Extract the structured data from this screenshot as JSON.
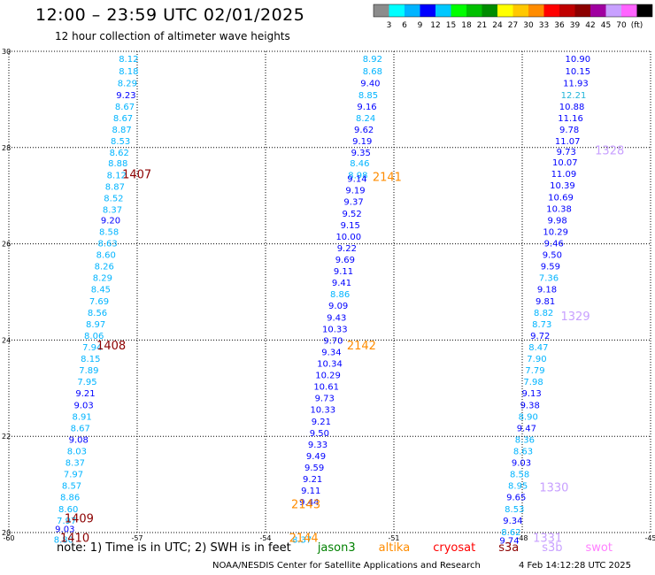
{
  "header": {
    "title": "12:00 – 23:59 UTC 02/01/2025",
    "subtitle": "12 hour collection of altimeter wave heights"
  },
  "colorbar": {
    "colors": [
      "#8c8c8c",
      "#00ffff",
      "#00b4ff",
      "#0000ff",
      "#00c8ff",
      "#00ff00",
      "#00c000",
      "#008c00",
      "#ffff00",
      "#ffc800",
      "#ff8c00",
      "#ff0000",
      "#c00000",
      "#8c0000",
      "#a000a0",
      "#c8a0ff",
      "#ff64ff",
      "#000000"
    ],
    "labels": [
      "3",
      "6",
      "9",
      "12",
      "15",
      "18",
      "21",
      "24",
      "27",
      "30",
      "33",
      "36",
      "39",
      "42",
      "45",
      "70",
      "(ft)"
    ]
  },
  "note": {
    "prefix": "note: 1) Time is in UTC; 2) SWH is in feet",
    "missions": [
      {
        "name": "jason3",
        "color": "#008000"
      },
      {
        "name": "altika",
        "color": "#ff8c00"
      },
      {
        "name": "cryosat",
        "color": "#ff0000"
      },
      {
        "name": "s3a",
        "color": "#8c0000"
      },
      {
        "name": "s3b",
        "color": "#c8a0ff"
      },
      {
        "name": "swot",
        "color": "#ff80ff"
      }
    ]
  },
  "footer": {
    "agency": "NOAA/NESDIS Center for Satellite Applications and Research",
    "generated": "4 Feb 14:12:28 UTC 2025"
  },
  "chart_data": {
    "type": "scatter",
    "title": "12:00 – 23:59 UTC 02/01/2025",
    "subtitle": "12 hour collection of altimeter wave heights",
    "xlim": [
      -60,
      -45
    ],
    "ylim": [
      20,
      30
    ],
    "x_ticks": [
      "-60",
      "-57",
      "-54",
      "-51",
      "-48",
      "-45"
    ],
    "y_ticks": [
      "20",
      "22",
      "24",
      "26",
      "28",
      "30"
    ],
    "grid": true,
    "series": [
      {
        "name": "track 1 (s3a)",
        "label_color": "#8c0000",
        "points": [
          {
            "lon": -57.2,
            "lat": 29.85,
            "swh": "8.12"
          },
          {
            "lon": -57.2,
            "lat": 29.6,
            "swh": "8.18"
          },
          {
            "lon": -57.23,
            "lat": 29.35,
            "swh": "8.29"
          },
          {
            "lon": -57.26,
            "lat": 29.1,
            "swh": "9.23"
          },
          {
            "lon": -57.29,
            "lat": 28.86,
            "swh": "8.67"
          },
          {
            "lon": -57.33,
            "lat": 28.62,
            "swh": "8.67"
          },
          {
            "lon": -57.36,
            "lat": 28.38,
            "swh": "8.87"
          },
          {
            "lon": -57.39,
            "lat": 28.14,
            "swh": "8.53"
          },
          {
            "lon": -57.42,
            "lat": 27.9,
            "swh": "8.62"
          },
          {
            "lon": -57.45,
            "lat": 27.68,
            "swh": "8.88"
          },
          {
            "lon": -57.48,
            "lat": 27.44,
            "swh": "8.12"
          },
          {
            "lon": -57.52,
            "lat": 27.2,
            "swh": "8.87"
          },
          {
            "lon": -57.55,
            "lat": 26.96,
            "swh": "8.52"
          },
          {
            "lon": -57.58,
            "lat": 26.72,
            "swh": "8.37"
          },
          {
            "lon": -57.62,
            "lat": 26.5,
            "swh": "9.20"
          },
          {
            "lon": -57.66,
            "lat": 26.26,
            "swh": "8.58"
          },
          {
            "lon": -57.69,
            "lat": 26.02,
            "swh": "8.63"
          },
          {
            "lon": -57.73,
            "lat": 25.78,
            "swh": "8.60"
          },
          {
            "lon": -57.77,
            "lat": 25.54,
            "swh": "8.26"
          },
          {
            "lon": -57.81,
            "lat": 25.3,
            "swh": "8.29"
          },
          {
            "lon": -57.85,
            "lat": 25.06,
            "swh": "8.45"
          },
          {
            "lon": -57.89,
            "lat": 24.82,
            "swh": "7.69"
          },
          {
            "lon": -57.93,
            "lat": 24.58,
            "swh": "8.56"
          },
          {
            "lon": -57.97,
            "lat": 24.34,
            "swh": "8.97"
          },
          {
            "lon": -58.01,
            "lat": 24.1,
            "swh": "8.06"
          },
          {
            "lon": -58.05,
            "lat": 23.86,
            "swh": "7.94"
          },
          {
            "lon": -58.09,
            "lat": 23.62,
            "swh": "8.15"
          },
          {
            "lon": -58.13,
            "lat": 23.38,
            "swh": "7.89"
          },
          {
            "lon": -58.17,
            "lat": 23.14,
            "swh": "7.95"
          },
          {
            "lon": -58.21,
            "lat": 22.9,
            "swh": "9.21"
          },
          {
            "lon": -58.25,
            "lat": 22.66,
            "swh": "9.03"
          },
          {
            "lon": -58.29,
            "lat": 22.42,
            "swh": "8.91"
          },
          {
            "lon": -58.33,
            "lat": 22.18,
            "swh": "8.67"
          },
          {
            "lon": -58.37,
            "lat": 21.94,
            "swh": "9.08"
          },
          {
            "lon": -58.41,
            "lat": 21.7,
            "swh": "8.03"
          },
          {
            "lon": -58.45,
            "lat": 21.46,
            "swh": "8.37"
          },
          {
            "lon": -58.49,
            "lat": 21.22,
            "swh": "7.97"
          },
          {
            "lon": -58.53,
            "lat": 20.98,
            "swh": "8.57"
          },
          {
            "lon": -58.57,
            "lat": 20.74,
            "swh": "8.86"
          },
          {
            "lon": -58.61,
            "lat": 20.5,
            "swh": "8.60"
          },
          {
            "lon": -58.65,
            "lat": 20.26,
            "swh": "7.97"
          },
          {
            "lon": -58.69,
            "lat": 20.08,
            "swh": "9.03"
          },
          {
            "lon": -58.72,
            "lat": 19.86,
            "swh": "8.80"
          }
        ]
      },
      {
        "name": "track 2 (altika)",
        "label_color": "#ff8c00",
        "points": [
          {
            "lon": -51.5,
            "lat": 29.85,
            "swh": "8.92"
          },
          {
            "lon": -51.5,
            "lat": 29.6,
            "swh": "8.68"
          },
          {
            "lon": -51.55,
            "lat": 29.35,
            "swh": "9.40"
          },
          {
            "lon": -51.6,
            "lat": 29.1,
            "swh": "8.85"
          },
          {
            "lon": -51.63,
            "lat": 28.86,
            "swh": "9.16"
          },
          {
            "lon": -51.66,
            "lat": 28.62,
            "swh": "8.24"
          },
          {
            "lon": -51.7,
            "lat": 28.38,
            "swh": "9.62"
          },
          {
            "lon": -51.74,
            "lat": 28.14,
            "swh": "9.19"
          },
          {
            "lon": -51.77,
            "lat": 27.9,
            "swh": "9.35"
          },
          {
            "lon": -51.8,
            "lat": 27.68,
            "swh": "8.46"
          },
          {
            "lon": -51.84,
            "lat": 27.44,
            "swh": "8.98"
          },
          {
            "lon": -51.86,
            "lat": 27.36,
            "swh": "9.14"
          },
          {
            "lon": -51.9,
            "lat": 27.12,
            "swh": "9.19"
          },
          {
            "lon": -51.94,
            "lat": 26.88,
            "swh": "9.37"
          },
          {
            "lon": -51.98,
            "lat": 26.64,
            "swh": "9.52"
          },
          {
            "lon": -52.02,
            "lat": 26.4,
            "swh": "9.15"
          },
          {
            "lon": -52.06,
            "lat": 26.16,
            "swh": "10.00"
          },
          {
            "lon": -52.1,
            "lat": 25.92,
            "swh": "9.22"
          },
          {
            "lon": -52.14,
            "lat": 25.68,
            "swh": "9.69"
          },
          {
            "lon": -52.18,
            "lat": 25.44,
            "swh": "9.11"
          },
          {
            "lon": -52.22,
            "lat": 25.2,
            "swh": "9.41"
          },
          {
            "lon": -52.26,
            "lat": 24.96,
            "swh": "8.86"
          },
          {
            "lon": -52.3,
            "lat": 24.72,
            "swh": "9.09"
          },
          {
            "lon": -52.34,
            "lat": 24.48,
            "swh": "9.43"
          },
          {
            "lon": -52.38,
            "lat": 24.24,
            "swh": "10.33"
          },
          {
            "lon": -52.42,
            "lat": 24.0,
            "swh": "9.70"
          },
          {
            "lon": -52.46,
            "lat": 23.76,
            "swh": "9.34"
          },
          {
            "lon": -52.5,
            "lat": 23.52,
            "swh": "10.34"
          },
          {
            "lon": -52.54,
            "lat": 23.28,
            "swh": "10.29"
          },
          {
            "lon": -52.58,
            "lat": 23.04,
            "swh": "10.61"
          },
          {
            "lon": -52.62,
            "lat": 22.8,
            "swh": "9.73"
          },
          {
            "lon": -52.66,
            "lat": 22.56,
            "swh": "10.33"
          },
          {
            "lon": -52.7,
            "lat": 22.32,
            "swh": "9.21"
          },
          {
            "lon": -52.74,
            "lat": 22.08,
            "swh": "9.50"
          },
          {
            "lon": -52.78,
            "lat": 21.84,
            "swh": "9.33"
          },
          {
            "lon": -52.82,
            "lat": 21.6,
            "swh": "9.49"
          },
          {
            "lon": -52.86,
            "lat": 21.36,
            "swh": "9.59"
          },
          {
            "lon": -52.9,
            "lat": 21.12,
            "swh": "9.21"
          },
          {
            "lon": -52.94,
            "lat": 20.88,
            "swh": "9.11"
          },
          {
            "lon": -52.98,
            "lat": 20.64,
            "swh": "9.44"
          },
          {
            "lon": -53.15,
            "lat": 19.86,
            "swh": "8.37"
          }
        ]
      },
      {
        "name": "track 3 (s3b)",
        "label_color": "#c8a0ff",
        "points": [
          {
            "lon": -46.7,
            "lat": 29.85,
            "swh": "10.90"
          },
          {
            "lon": -46.7,
            "lat": 29.6,
            "swh": "10.15"
          },
          {
            "lon": -46.75,
            "lat": 29.35,
            "swh": "11.93"
          },
          {
            "lon": -46.8,
            "lat": 29.1,
            "swh": "12.21"
          },
          {
            "lon": -46.84,
            "lat": 28.86,
            "swh": "10.88"
          },
          {
            "lon": -46.87,
            "lat": 28.62,
            "swh": "11.16"
          },
          {
            "lon": -46.9,
            "lat": 28.38,
            "swh": "9.78"
          },
          {
            "lon": -46.94,
            "lat": 28.14,
            "swh": "11.07"
          },
          {
            "lon": -46.97,
            "lat": 27.92,
            "swh": "9.73"
          },
          {
            "lon": -47.0,
            "lat": 27.7,
            "swh": "10.07"
          },
          {
            "lon": -47.03,
            "lat": 27.46,
            "swh": "11.09"
          },
          {
            "lon": -47.06,
            "lat": 27.22,
            "swh": "10.39"
          },
          {
            "lon": -47.1,
            "lat": 26.98,
            "swh": "10.69"
          },
          {
            "lon": -47.14,
            "lat": 26.74,
            "swh": "10.38"
          },
          {
            "lon": -47.18,
            "lat": 26.5,
            "swh": "9.98"
          },
          {
            "lon": -47.22,
            "lat": 26.26,
            "swh": "10.29"
          },
          {
            "lon": -47.26,
            "lat": 26.02,
            "swh": "9.46"
          },
          {
            "lon": -47.3,
            "lat": 25.78,
            "swh": "9.50"
          },
          {
            "lon": -47.34,
            "lat": 25.54,
            "swh": "9.59"
          },
          {
            "lon": -47.38,
            "lat": 25.3,
            "swh": "7.36"
          },
          {
            "lon": -47.42,
            "lat": 25.06,
            "swh": "9.18"
          },
          {
            "lon": -47.46,
            "lat": 24.82,
            "swh": "9.81"
          },
          {
            "lon": -47.5,
            "lat": 24.58,
            "swh": "8.82"
          },
          {
            "lon": -47.54,
            "lat": 24.34,
            "swh": "8.73"
          },
          {
            "lon": -47.58,
            "lat": 24.1,
            "swh": "9.72"
          },
          {
            "lon": -47.62,
            "lat": 23.86,
            "swh": "8.47"
          },
          {
            "lon": -47.66,
            "lat": 23.62,
            "swh": "7.90"
          },
          {
            "lon": -47.7,
            "lat": 23.38,
            "swh": "7.79"
          },
          {
            "lon": -47.74,
            "lat": 23.14,
            "swh": "7.98"
          },
          {
            "lon": -47.78,
            "lat": 22.9,
            "swh": "9.13"
          },
          {
            "lon": -47.82,
            "lat": 22.66,
            "swh": "9.38"
          },
          {
            "lon": -47.86,
            "lat": 22.42,
            "swh": "8.90"
          },
          {
            "lon": -47.9,
            "lat": 22.18,
            "swh": "9.47"
          },
          {
            "lon": -47.94,
            "lat": 21.94,
            "swh": "8.36"
          },
          {
            "lon": -47.98,
            "lat": 21.7,
            "swh": "8.63"
          },
          {
            "lon": -48.02,
            "lat": 21.46,
            "swh": "9.03"
          },
          {
            "lon": -48.06,
            "lat": 21.22,
            "swh": "8.58"
          },
          {
            "lon": -48.1,
            "lat": 20.98,
            "swh": "8.95"
          },
          {
            "lon": -48.14,
            "lat": 20.74,
            "swh": "9.65"
          },
          {
            "lon": -48.18,
            "lat": 20.5,
            "swh": "8.53"
          },
          {
            "lon": -48.22,
            "lat": 20.26,
            "swh": "9.34"
          },
          {
            "lon": -48.26,
            "lat": 20.02,
            "swh": "8.62"
          },
          {
            "lon": -48.3,
            "lat": 19.84,
            "swh": "9.74"
          }
        ]
      }
    ],
    "pass_labels": [
      {
        "text": "1407",
        "lon": -57.35,
        "lat": 27.45,
        "color": "#8c0000"
      },
      {
        "text": "1408",
        "lon": -57.95,
        "lat": 23.9,
        "color": "#8c0000"
      },
      {
        "text": "1409",
        "lon": -58.7,
        "lat": 20.3,
        "color": "#8c0000"
      },
      {
        "text": "1410",
        "lon": -58.8,
        "lat": 19.9,
        "color": "#8c0000"
      },
      {
        "text": "2141",
        "lon": -51.5,
        "lat": 27.4,
        "color": "#ff8c00"
      },
      {
        "text": "2142",
        "lon": -52.1,
        "lat": 23.9,
        "color": "#ff8c00"
      },
      {
        "text": "2143",
        "lon": -53.4,
        "lat": 20.6,
        "color": "#ff8c00"
      },
      {
        "text": "2144",
        "lon": -53.45,
        "lat": 19.9,
        "color": "#ff8c00"
      },
      {
        "text": "1328",
        "lon": -46.3,
        "lat": 27.95,
        "color": "#c8a0ff"
      },
      {
        "text": "1329",
        "lon": -47.1,
        "lat": 24.5,
        "color": "#c8a0ff"
      },
      {
        "text": "1330",
        "lon": -47.6,
        "lat": 20.95,
        "color": "#c8a0ff"
      },
      {
        "text": "1331",
        "lon": -47.75,
        "lat": 19.9,
        "color": "#c8a0ff"
      }
    ]
  }
}
